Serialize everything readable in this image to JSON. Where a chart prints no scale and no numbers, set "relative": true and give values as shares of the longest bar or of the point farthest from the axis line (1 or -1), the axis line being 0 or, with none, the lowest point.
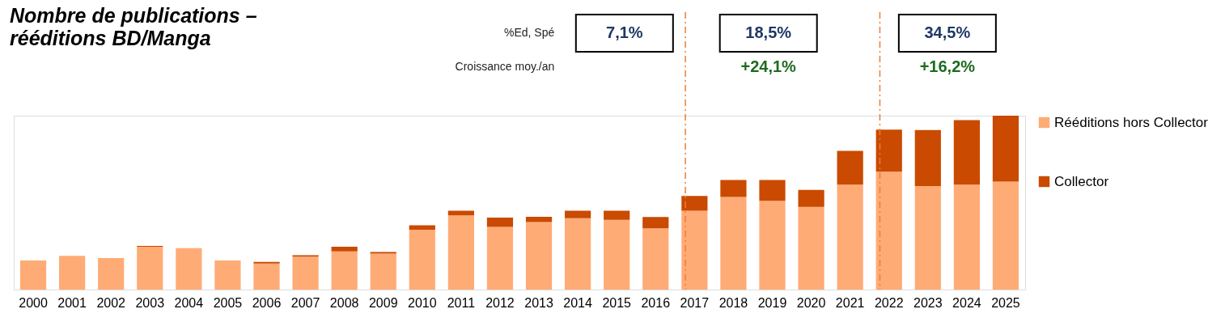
{
  "chart_data": {
    "type": "bar",
    "title": "Nombre de publications – rééditions BD/Manga",
    "categories": [
      "2000",
      "2001",
      "2002",
      "2003",
      "2004",
      "2005",
      "2006",
      "2007",
      "2008",
      "2009",
      "2010",
      "2011",
      "2012",
      "2013",
      "2014",
      "2015",
      "2016",
      "2017",
      "2018",
      "2019",
      "2020",
      "2021",
      "2022",
      "2023",
      "2024",
      "2025"
    ],
    "relative": true,
    "stacked": true,
    "legend": "right",
    "series": [
      {
        "name": "Rééditions hors Collector",
        "color": "#ffab76",
        "values": [
          0.167,
          0.194,
          0.181,
          0.247,
          0.238,
          0.167,
          0.15,
          0.189,
          0.22,
          0.207,
          0.344,
          0.427,
          0.361,
          0.388,
          0.41,
          0.401,
          0.352,
          0.454,
          0.533,
          0.511,
          0.476,
          0.604,
          0.678,
          0.595,
          0.604,
          0.621
        ]
      },
      {
        "name": "Collector",
        "color": "#c94a00",
        "values": [
          0,
          0,
          0,
          0.004,
          0,
          0,
          0.009,
          0.009,
          0.026,
          0.009,
          0.026,
          0.026,
          0.053,
          0.031,
          0.044,
          0.053,
          0.066,
          0.084,
          0.097,
          0.119,
          0.097,
          0.194,
          0.242,
          0.322,
          0.37,
          0.379
        ]
      }
    ],
    "ref_lines": [
      {
        "axis": "x",
        "value": "2017",
        "color": "#ed7d31",
        "line_style": "dashdot"
      },
      {
        "axis": "x",
        "value": "2022",
        "color": "#ed7d31",
        "line_style": "dashdot"
      }
    ],
    "annotations": [
      "%Ed, Spé",
      "7,1%",
      "18,5%",
      "34,5%",
      "Croissance moy./an",
      "+24,1%",
      "+16,2%"
    ]
  }
}
